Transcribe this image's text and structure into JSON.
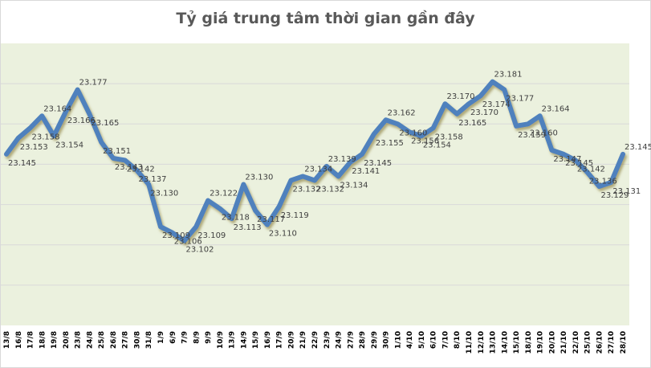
{
  "chart_data": {
    "type": "line",
    "title": "Tỷ giá trung tâm thời gian gần đây",
    "xlabel": "",
    "ylabel": "",
    "ylim": [
      23.06,
      23.2
    ],
    "grid": true,
    "legend": "none",
    "categories": [
      "13/8",
      "16/8",
      "17/8",
      "18/8",
      "19/8",
      "20/8",
      "23/8",
      "24/8",
      "25/8",
      "26/8",
      "27/8",
      "30/8",
      "31/8",
      "1/9",
      "6/9",
      "7/9",
      "8/9",
      "9/9",
      "10/9",
      "13/9",
      "14/9",
      "15/9",
      "16/9",
      "17/9",
      "20/9",
      "21/9",
      "22/9",
      "23/9",
      "24/9",
      "27/9",
      "28/9",
      "29/9",
      "30/9",
      "1/10",
      "4/10",
      "5/10",
      "6/10",
      "7/10",
      "8/10",
      "11/10",
      "12/10",
      "13/10",
      "14/10",
      "15/10",
      "18/10",
      "19/10",
      "20/10",
      "21/10",
      "22/10",
      "25/10",
      "26/10",
      "27/10",
      "28/10"
    ],
    "series": [
      {
        "name": "Tỷ giá trung tâm",
        "color": "#4f81bd",
        "values": [
          23.145,
          23.153,
          23.158,
          23.164,
          23.154,
          23.166,
          23.177,
          23.165,
          23.151,
          23.143,
          23.142,
          23.137,
          23.13,
          23.109,
          23.106,
          23.102,
          23.109,
          23.122,
          23.118,
          23.113,
          23.13,
          23.117,
          23.11,
          23.119,
          23.132,
          23.134,
          23.132,
          23.139,
          23.134,
          23.141,
          23.145,
          23.155,
          23.162,
          23.16,
          23.156,
          23.154,
          23.158,
          23.17,
          23.165,
          23.17,
          23.174,
          23.181,
          23.177,
          23.159,
          23.16,
          23.164,
          23.147,
          23.145,
          23.142,
          23.136,
          23.129,
          23.131,
          23.145
        ]
      }
    ]
  },
  "colors": {
    "plot_bg": "#ebf1de",
    "line": "#4f81bd",
    "grid": "#d9d9d9",
    "title": "#595959"
  }
}
